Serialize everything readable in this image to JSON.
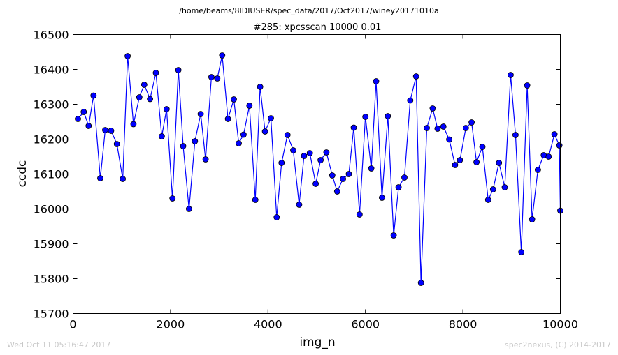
{
  "suptitle": "/home/beams/8IDIUSER/spec_data/2017/Oct2017/winey20171010a",
  "footer_left": "Wed Oct 11 05:16:47 2017",
  "footer_right": "spec2nexus, (C) 2014-2017",
  "colors": {
    "line": "#0000ff",
    "marker_fill": "#0000ff",
    "marker_edge": "#000000",
    "axes": "#000000",
    "footer_text": "#c8c8c8"
  },
  "chart_data": {
    "type": "line",
    "title": "#285: xpcsscan 10000 0.01",
    "xlabel": "img_n",
    "ylabel": "ccdc",
    "xlim": [
      0,
      10000
    ],
    "ylim": [
      15700,
      16500
    ],
    "xticks": [
      "0",
      "2000",
      "4000",
      "6000",
      "8000",
      "10000"
    ],
    "yticks": [
      "15700",
      "15800",
      "15900",
      "16000",
      "16100",
      "16200",
      "16300",
      "16400",
      "16500"
    ],
    "grid": false,
    "legend": "none",
    "series": [
      {
        "x": [
          100,
          220,
          320,
          420,
          560,
          660,
          780,
          900,
          1020,
          1120,
          1240,
          1360,
          1460,
          1580,
          1700,
          1820,
          1920,
          2040,
          2160,
          2260,
          2380,
          2500,
          2620,
          2720,
          2840,
          2960,
          3060,
          3180,
          3300,
          3400,
          3500,
          3620,
          3740,
          3840,
          3940,
          4060,
          4180,
          4280,
          4400,
          4520,
          4640,
          4740,
          4860,
          4980,
          5080,
          5200,
          5320,
          5420,
          5540,
          5660,
          5760,
          5880,
          6000,
          6120,
          6220,
          6340,
          6460,
          6580,
          6680,
          6800,
          6920,
          7040,
          7140,
          7260,
          7380,
          7480,
          7600,
          7720,
          7840,
          7940,
          8060,
          8180,
          8280,
          8400,
          8520,
          8620,
          8740,
          8860,
          8980,
          9080,
          9200,
          9320,
          9420,
          9540,
          9660,
          9760,
          9880,
          9980,
          10000
        ],
        "y": [
          16258,
          16278,
          16238,
          16325,
          16088,
          16226,
          16224,
          16186,
          16086,
          16438,
          16243,
          16320,
          16356,
          16315,
          16390,
          16208,
          16286,
          16030,
          16398,
          16180,
          16000,
          16194,
          16272,
          16142,
          16378,
          16374,
          16440,
          16258,
          16314,
          16188,
          16213,
          16296,
          16026,
          16350,
          16222,
          16260,
          15976,
          16132,
          16212,
          16168,
          16012,
          16152,
          16160,
          16072,
          16140,
          16162,
          16096,
          16050,
          16086,
          16100,
          16233,
          15984,
          16264,
          16116,
          16366,
          16032,
          16266,
          15924,
          16062,
          16090,
          16311,
          16380,
          15788,
          16232,
          16288,
          16230,
          16236,
          16199,
          16126,
          16140,
          16232,
          16248,
          16134,
          16178,
          16026,
          16056,
          16132,
          16062,
          16384,
          16212,
          15876,
          16354,
          15970,
          16112,
          16154,
          16150,
          16214,
          16182,
          15995
        ]
      }
    ]
  }
}
